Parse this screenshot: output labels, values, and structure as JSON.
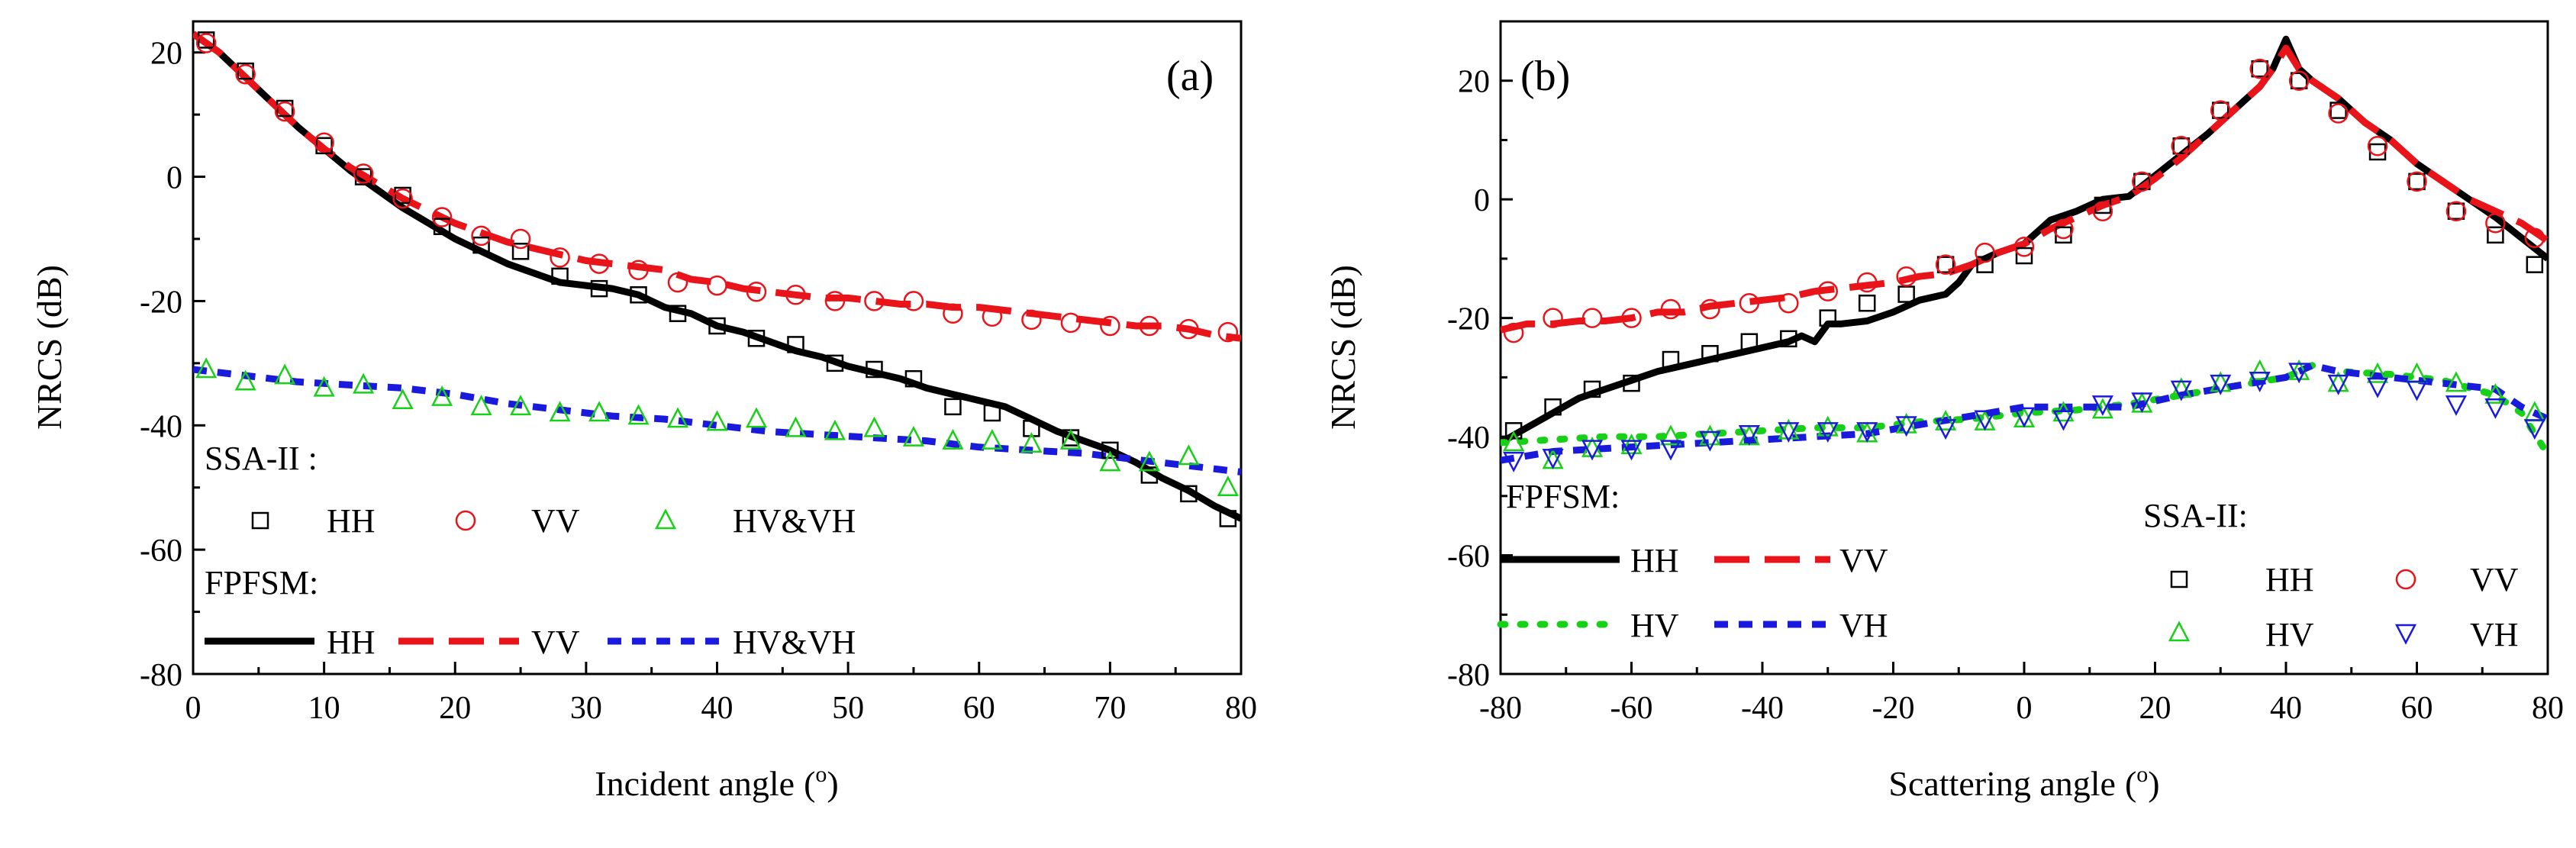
{
  "chart_data": [
    {
      "type": "line",
      "panel_label": "(a)",
      "xlabel": "Incident angle",
      "xlabel_unit_base": "(",
      "xlabel_unit_sup": "o",
      "xlabel_unit_end": ")",
      "ylabel": "NRCS (dB)",
      "xlim": [
        0,
        80
      ],
      "ylim": [
        -80,
        25
      ],
      "xticks": [
        0,
        10,
        20,
        30,
        40,
        50,
        60,
        70,
        80
      ],
      "yticks": [
        -80,
        -60,
        -40,
        -20,
        0,
        20
      ],
      "legend_group_markers": "SSA-II :",
      "legend_group_lines": "FPFSM:",
      "series": [
        {
          "name": "HH",
          "model": "FPFSM",
          "style": "solid",
          "color": "#000000",
          "x": [
            0,
            2,
            4,
            6,
            8,
            10,
            12,
            14,
            16,
            18,
            20,
            22,
            24,
            26,
            28,
            30,
            32,
            34,
            36,
            38,
            40,
            42,
            44,
            46,
            48,
            50,
            52,
            54,
            56,
            58,
            60,
            62,
            64,
            66,
            68,
            70,
            72,
            74,
            76,
            78,
            80
          ],
          "y": [
            23,
            20,
            16,
            12,
            8,
            4.5,
            1,
            -2,
            -5,
            -7.5,
            -10,
            -12,
            -14,
            -15.5,
            -17,
            -17.5,
            -18,
            -19,
            -21,
            -22,
            -24,
            -25,
            -26.5,
            -28,
            -29,
            -30.5,
            -31.5,
            -32.5,
            -34,
            -35,
            -36,
            -37,
            -39,
            -41,
            -42.5,
            -44,
            -46,
            -48.5,
            -50.5,
            -53,
            -55
          ]
        },
        {
          "name": "VV",
          "model": "FPFSM",
          "style": "dashed",
          "color": "#e8141a",
          "x": [
            0,
            2,
            4,
            6,
            8,
            10,
            12,
            14,
            16,
            18,
            20,
            22,
            24,
            26,
            28,
            30,
            32,
            34,
            36,
            38,
            40,
            42,
            44,
            46,
            48,
            50,
            52,
            54,
            56,
            58,
            60,
            62,
            64,
            66,
            68,
            70,
            72,
            74,
            76,
            78,
            80
          ],
          "y": [
            23,
            20,
            16,
            12,
            8,
            4.5,
            1.5,
            -1,
            -3.5,
            -5.5,
            -7.5,
            -9,
            -10.5,
            -11.5,
            -12.5,
            -13.5,
            -14,
            -14.5,
            -15,
            -16.5,
            -17,
            -18,
            -18.5,
            -19,
            -19.5,
            -19.5,
            -20,
            -20.5,
            -20.5,
            -21,
            -21,
            -21.5,
            -22,
            -22.5,
            -23,
            -23.5,
            -24,
            -24,
            -24.5,
            -25.5,
            -26
          ]
        },
        {
          "name": "HV&VH",
          "model": "FPFSM",
          "style": "dotted",
          "color": "#1a1adc",
          "x": [
            0,
            4,
            8,
            12,
            16,
            20,
            24,
            28,
            32,
            36,
            40,
            44,
            48,
            52,
            56,
            60,
            64,
            68,
            72,
            76,
            80
          ],
          "y": [
            -31,
            -32,
            -33,
            -33.5,
            -34,
            -35,
            -36.5,
            -37.5,
            -38.5,
            -39,
            -40,
            -41,
            -41.5,
            -42,
            -42.5,
            -43.5,
            -44,
            -44.5,
            -45.5,
            -46.5,
            -47.5
          ]
        },
        {
          "name": "HH",
          "model": "SSA-II",
          "marker": "square",
          "color": "#000000",
          "x": [
            1,
            4,
            7,
            10,
            13,
            16,
            19,
            22,
            25,
            28,
            31,
            34,
            37,
            40,
            43,
            46,
            49,
            52,
            55,
            58,
            61,
            64,
            67,
            70,
            73,
            76,
            79
          ],
          "y": [
            22,
            17,
            11,
            5,
            0,
            -3,
            -8,
            -11,
            -12,
            -16,
            -18,
            -19,
            -22,
            -24,
            -26,
            -27,
            -30,
            -31,
            -32.5,
            -37,
            -38,
            -40.5,
            -42,
            -44,
            -48,
            -51,
            -55
          ]
        },
        {
          "name": "VV",
          "model": "SSA-II",
          "marker": "circle",
          "color": "#e8141a",
          "x": [
            1,
            4,
            7,
            10,
            13,
            16,
            19,
            22,
            25,
            28,
            31,
            34,
            37,
            40,
            43,
            46,
            49,
            52,
            55,
            58,
            61,
            64,
            67,
            70,
            73,
            76,
            79
          ],
          "y": [
            21.5,
            16.5,
            10.5,
            5.5,
            0.5,
            -3.5,
            -6.5,
            -9.5,
            -10,
            -13,
            -14,
            -15,
            -17,
            -17.5,
            -18.5,
            -19,
            -20,
            -20,
            -20,
            -22,
            -22.5,
            -23,
            -23.5,
            -24,
            -24,
            -24.5,
            -25
          ]
        },
        {
          "name": "HV&VH",
          "model": "SSA-II",
          "marker": "triangle",
          "color": "#18d018",
          "x": [
            1,
            4,
            7,
            10,
            13,
            16,
            19,
            22,
            25,
            28,
            31,
            34,
            37,
            40,
            43,
            46,
            49,
            52,
            55,
            58,
            61,
            64,
            67,
            70,
            73,
            76,
            79
          ],
          "y": [
            -31,
            -33,
            -32,
            -34,
            -33.5,
            -36,
            -35.5,
            -37,
            -37,
            -38,
            -38,
            -38.5,
            -39,
            -39.5,
            -39,
            -40.5,
            -41,
            -40.5,
            -42,
            -42.5,
            -42.5,
            -43,
            -42.5,
            -46,
            -46,
            -45,
            -50
          ]
        }
      ]
    },
    {
      "type": "line",
      "panel_label": "(b)",
      "xlabel": "Scattering angle",
      "xlabel_unit_base": "(",
      "xlabel_unit_sup": "o",
      "xlabel_unit_end": ")",
      "ylabel": "NRCS (dB)",
      "xlim": [
        -80,
        80
      ],
      "ylim": [
        -80,
        30
      ],
      "xticks": [
        -80,
        -60,
        -40,
        -20,
        0,
        20,
        40,
        60,
        80
      ],
      "yticks": [
        -80,
        -60,
        -40,
        -20,
        0,
        20
      ],
      "legend_group_markers": "SSA-II:",
      "legend_group_lines": "FPFSM:",
      "series": [
        {
          "name": "HH",
          "model": "FPFSM",
          "style": "solid",
          "color": "#000000",
          "x": [
            -80,
            -76,
            -72,
            -68,
            -64,
            -60,
            -56,
            -52,
            -48,
            -44,
            -40,
            -36,
            -34,
            -32,
            -30,
            -28,
            -24,
            -20,
            -16,
            -12,
            -10,
            -8,
            -4,
            0,
            4,
            8,
            12,
            16,
            20,
            24,
            28,
            32,
            36,
            38,
            40,
            42,
            44,
            48,
            52,
            56,
            60,
            64,
            68,
            72,
            76,
            80
          ],
          "y": [
            -41,
            -38.5,
            -36,
            -33.5,
            -32,
            -30.5,
            -29,
            -28,
            -27,
            -26,
            -25,
            -24,
            -23,
            -24,
            -21,
            -21,
            -20.5,
            -19,
            -17,
            -16,
            -14,
            -11,
            -9,
            -7.5,
            -3.5,
            -2,
            0,
            0.5,
            4,
            7.5,
            11,
            15,
            19,
            22,
            27,
            22,
            20,
            17,
            13,
            10,
            6,
            3,
            0,
            -3,
            -6.5,
            -10
          ]
        },
        {
          "name": "VV",
          "model": "FPFSM",
          "style": "dashed",
          "color": "#e8141a",
          "x": [
            -80,
            -76,
            -72,
            -68,
            -64,
            -60,
            -56,
            -52,
            -48,
            -44,
            -40,
            -36,
            -32,
            -28,
            -24,
            -20,
            -16,
            -12,
            -8,
            -4,
            0,
            4,
            8,
            12,
            16,
            20,
            24,
            28,
            32,
            36,
            38,
            40,
            42,
            44,
            48,
            52,
            56,
            60,
            64,
            68,
            72,
            76,
            80
          ],
          "y": [
            -22,
            -21,
            -21,
            -20.5,
            -20.5,
            -20,
            -19,
            -19,
            -18,
            -17.5,
            -17,
            -16.5,
            -15.5,
            -15,
            -14.5,
            -14,
            -13,
            -12.5,
            -11,
            -9,
            -7.5,
            -5,
            -3,
            -1,
            0.5,
            3.5,
            7,
            11,
            15,
            19,
            22,
            25.5,
            22,
            20,
            17,
            13,
            10,
            6,
            3,
            0,
            -2,
            -4,
            -7
          ]
        },
        {
          "name": "HV",
          "model": "FPFSM",
          "style": "dotted",
          "color": "#18d018",
          "x": [
            -80,
            -72,
            -64,
            -56,
            -48,
            -40,
            -32,
            -24,
            -16,
            -8,
            0,
            8,
            16,
            24,
            32,
            40,
            44,
            48,
            56,
            64,
            72,
            76,
            80
          ],
          "y": [
            -41,
            -40.5,
            -40,
            -40,
            -39.5,
            -39,
            -38.5,
            -38.5,
            -37.5,
            -37,
            -36,
            -35.5,
            -34.5,
            -33,
            -31.5,
            -30,
            -28,
            -29,
            -29.5,
            -30.5,
            -33,
            -36,
            -43
          ]
        },
        {
          "name": "VH",
          "model": "FPFSM",
          "style": "dotted",
          "color": "#1a1adc",
          "x": [
            -80,
            -72,
            -64,
            -56,
            -48,
            -40,
            -32,
            -24,
            -16,
            -8,
            0,
            8,
            16,
            24,
            32,
            40,
            44,
            48,
            56,
            64,
            72,
            76,
            80
          ],
          "y": [
            -44,
            -42.5,
            -42,
            -41.5,
            -41,
            -40.5,
            -40,
            -39.5,
            -38,
            -36.5,
            -35,
            -35,
            -35,
            -33,
            -31.5,
            -30,
            -28,
            -29,
            -30,
            -31,
            -32,
            -35,
            -37
          ]
        },
        {
          "name": "HH",
          "model": "SSA-II",
          "marker": "square",
          "color": "#000000",
          "x": [
            -78,
            -72,
            -66,
            -60,
            -54,
            -48,
            -42,
            -36,
            -30,
            -24,
            -18,
            -12,
            -6,
            0,
            6,
            12,
            18,
            24,
            30,
            36,
            42,
            48,
            54,
            60,
            66,
            72,
            78
          ],
          "y": [
            -39,
            -35,
            -32,
            -31,
            -27,
            -26,
            -24,
            -23.5,
            -20,
            -17.5,
            -16,
            -11,
            -11,
            -9.5,
            -6,
            -1,
            3,
            9,
            15,
            22,
            20,
            15,
            8,
            3,
            -2,
            -6,
            -11
          ]
        },
        {
          "name": "VV",
          "model": "SSA-II",
          "marker": "circle",
          "color": "#e8141a",
          "x": [
            -78,
            -72,
            -66,
            -60,
            -54,
            -48,
            -42,
            -36,
            -30,
            -24,
            -18,
            -12,
            -6,
            0,
            6,
            12,
            18,
            24,
            30,
            36,
            42,
            48,
            54,
            60,
            66,
            72,
            78
          ],
          "y": [
            -22.5,
            -20,
            -20,
            -20,
            -18.5,
            -18.5,
            -17.5,
            -17.5,
            -15.5,
            -14,
            -13,
            -11,
            -9,
            -8,
            -5,
            -2,
            3,
            9,
            15,
            22,
            20,
            14.5,
            9,
            3,
            -2,
            -4,
            -6.5
          ]
        },
        {
          "name": "HV",
          "model": "SSA-II",
          "marker": "triangle",
          "color": "#18d018",
          "x": [
            -78,
            -72,
            -66,
            -60,
            -54,
            -48,
            -42,
            -36,
            -30,
            -24,
            -18,
            -12,
            -6,
            0,
            6,
            12,
            18,
            24,
            30,
            36,
            42,
            48,
            54,
            60,
            66,
            72,
            78
          ],
          "y": [
            -41,
            -44,
            -42,
            -41.5,
            -40,
            -40,
            -40,
            -39,
            -38.5,
            -39.5,
            -38,
            -37.5,
            -37.5,
            -37,
            -36,
            -35.5,
            -34.5,
            -32,
            -31,
            -29,
            -29,
            -31,
            -29.5,
            -29.5,
            -31,
            -33,
            -36
          ]
        },
        {
          "name": "VH",
          "model": "SSA-II",
          "marker": "triangle-down",
          "color": "#1a1adc",
          "x": [
            -78,
            -72,
            -66,
            -60,
            -54,
            -48,
            -42,
            -36,
            -30,
            -24,
            -18,
            -12,
            -6,
            0,
            6,
            12,
            18,
            24,
            30,
            36,
            42,
            48,
            54,
            60,
            66,
            72,
            78
          ],
          "y": [
            -44,
            -43.5,
            -42,
            -42,
            -42,
            -40.5,
            -39.5,
            -39,
            -39,
            -39,
            -38,
            -38.5,
            -37,
            -36.5,
            -37,
            -34.5,
            -34,
            -32,
            -31,
            -30.5,
            -29,
            -31,
            -31.5,
            -32,
            -34.5,
            -35,
            -38.5
          ]
        }
      ]
    }
  ]
}
